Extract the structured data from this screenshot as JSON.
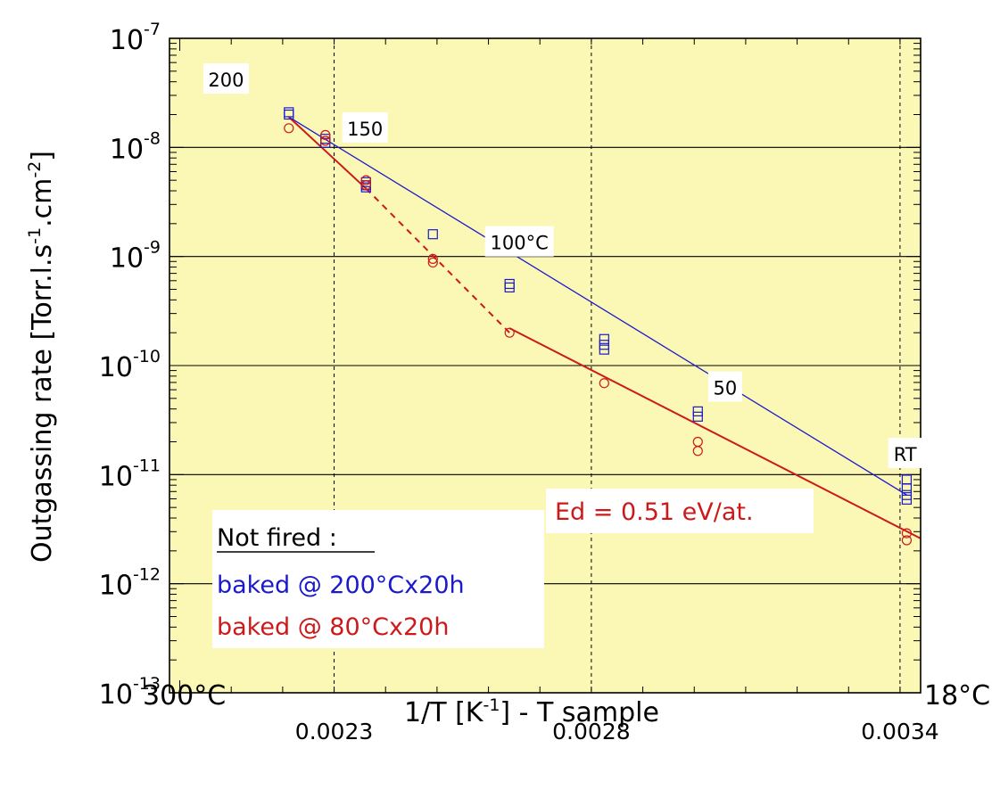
{
  "chart_data": {
    "type": "scatter",
    "title": "",
    "xlabel_main": "1/T [K",
    "xlabel_sup": "-1",
    "xlabel_tail": "] - T sample",
    "ylabel_main": "Outgassing rate [Torr.l.s",
    "ylabel_sup1": "-1",
    "ylabel_mid": ".cm",
    "ylabel_sup2": "-2",
    "ylabel_tail": "]",
    "xlim": [
      0.00198,
      0.00344
    ],
    "ylim_exp": [
      -13,
      -7
    ],
    "yscale": "log",
    "grid": true,
    "x_ticks": [
      {
        "value": 0.0023,
        "label": "0.0023"
      },
      {
        "value": 0.0028,
        "label": "0.0028"
      },
      {
        "value": 0.0034,
        "label": "0.0034"
      }
    ],
    "y_ticks": [
      {
        "exp": -13,
        "base": "10",
        "sup": "-13"
      },
      {
        "exp": -12,
        "base": "10",
        "sup": "-12"
      },
      {
        "exp": -11,
        "base": "10",
        "sup": "-11"
      },
      {
        "exp": -10,
        "base": "10",
        "sup": "-10"
      },
      {
        "exp": -9,
        "base": "10",
        "sup": "-9"
      },
      {
        "exp": -8,
        "base": "10",
        "sup": "-8"
      },
      {
        "exp": -7,
        "base": "10",
        "sup": "-7"
      }
    ],
    "x_end_labels": {
      "left": "300°C",
      "right": "18°C"
    },
    "temperature_labels": [
      {
        "label": "200",
        "x": 0.00209,
        "y": 4.2e-08
      },
      {
        "label": "150",
        "x": 0.00236,
        "y": 1.5e-08
      },
      {
        "label": "100°C",
        "x": 0.00266,
        "y": 1.35e-09
      },
      {
        "label": "50",
        "x": 0.00306,
        "y": 6.3e-11
      },
      {
        "label": "RT",
        "x": 0.00341,
        "y": 1.55e-11
      }
    ],
    "series": [
      {
        "name": "baked @ 200°Cx20h",
        "color": "#1a1acc",
        "marker": "square",
        "points": [
          [
            0.002212,
            2.1e-08
          ],
          [
            0.002212,
            2e-08
          ],
          [
            0.002283,
            1.2e-08
          ],
          [
            0.002283,
            1.1e-08
          ],
          [
            0.002362,
            4.8e-09
          ],
          [
            0.002362,
            4.5e-09
          ],
          [
            0.002362,
            4.3e-09
          ],
          [
            0.002492,
            1.6e-09
          ],
          [
            0.002641,
            5.6e-10
          ],
          [
            0.002641,
            5.2e-10
          ],
          [
            0.002825,
            1.75e-10
          ],
          [
            0.002825,
            1.55e-10
          ],
          [
            0.002825,
            1.4e-10
          ],
          [
            0.003007,
            3.8e-11
          ],
          [
            0.003007,
            3.4e-11
          ],
          [
            0.003413,
            9e-12
          ],
          [
            0.003413,
            7.5e-12
          ],
          [
            0.003413,
            6.5e-12
          ],
          [
            0.003413,
            5.9e-12
          ]
        ],
        "fit": [
          [
            0.002212,
            1.9e-08
          ],
          [
            0.003413,
            6.5e-12
          ]
        ]
      },
      {
        "name": "baked @ 80°Cx20h",
        "color": "#cc1a1a",
        "marker": "circle",
        "points": [
          [
            0.002212,
            1.5e-08
          ],
          [
            0.002283,
            1.3e-08
          ],
          [
            0.002283,
            1.15e-08
          ],
          [
            0.002362,
            5e-09
          ],
          [
            0.002362,
            4.5e-09
          ],
          [
            0.002492,
            9.5e-10
          ],
          [
            0.002492,
            8.8e-10
          ],
          [
            0.002641,
            2e-10
          ],
          [
            0.002825,
            6.9e-11
          ],
          [
            0.003007,
            2e-11
          ],
          [
            0.003007,
            1.65e-11
          ],
          [
            0.003413,
            2.9e-12
          ],
          [
            0.003413,
            2.5e-12
          ]
        ],
        "fit": [
          [
            0.002212,
            1.9e-08
          ],
          [
            0.002362,
            4.2e-09
          ]
        ],
        "fit_dashed": [
          [
            0.002362,
            4.2e-09
          ],
          [
            0.002641,
            2e-10
          ]
        ],
        "fit2": [
          [
            0.002641,
            2.2e-10
          ],
          [
            0.00344,
            2.6e-12
          ]
        ]
      }
    ],
    "legend": {
      "title": "Not fired :",
      "placement": "bottom-left",
      "entries": [
        {
          "label": "baked @ 200°Cx20h",
          "color": "#1a1acc"
        },
        {
          "label": "baked @ 80°Cx20h",
          "color": "#cc1a1a"
        }
      ]
    },
    "annotation": {
      "text": "Ed = 0.51 eV/at.",
      "color": "#cc1a1a"
    },
    "colors": {
      "plot_background": "#fbf7b5"
    }
  }
}
